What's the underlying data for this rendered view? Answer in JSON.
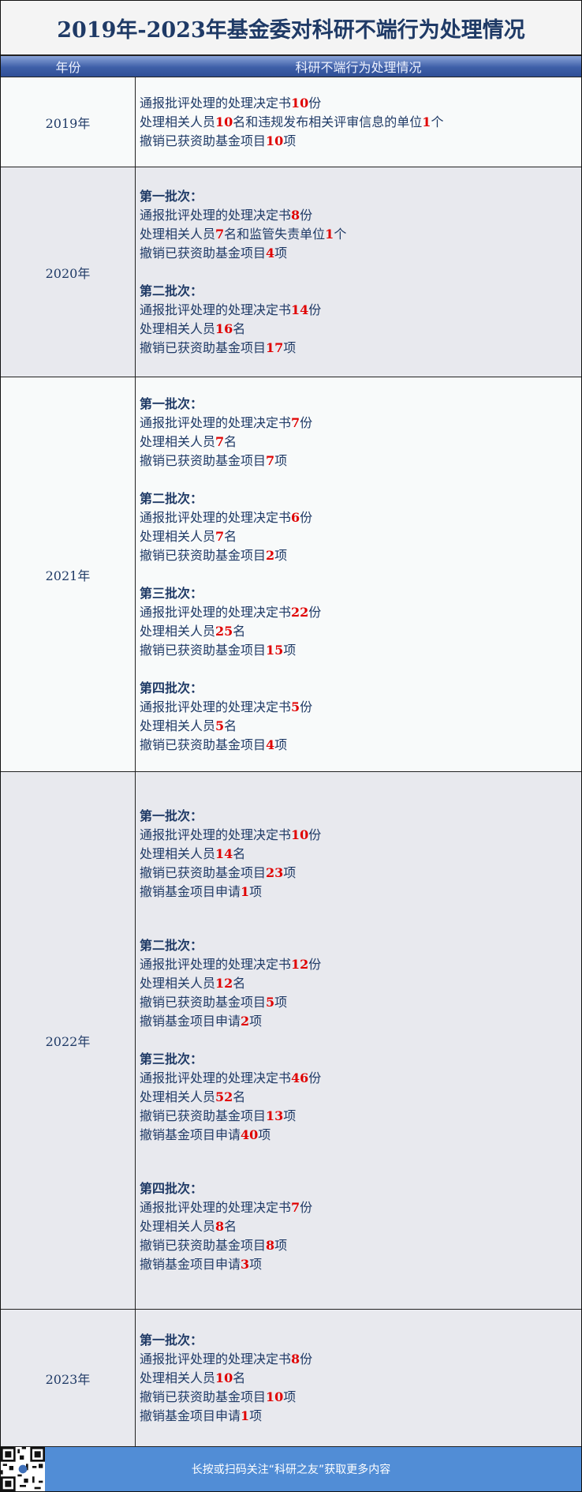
{
  "title": "2019年-2023年基金委对科研不端行为处理情况",
  "table_header": {
    "year": "年份",
    "details": "科研不端行为处理情况"
  },
  "colors": {
    "accent": "#518dd6",
    "number": "#e00000",
    "text": "#1f3a66"
  },
  "rows": [
    {
      "year": "2019年",
      "bg": "light",
      "height": 114,
      "groups": [
        {
          "batch": "",
          "gap": 0,
          "lines": [
            [
              {
                "t": "通报批评处理的处理决定书"
              },
              {
                "t": "10",
                "red": true
              },
              {
                "t": "份"
              }
            ],
            [
              {
                "t": "处理相关人员"
              },
              {
                "t": "10",
                "red": true
              },
              {
                "t": "名和违规发布相关评审信息的单位"
              },
              {
                "t": "1",
                "red": true
              },
              {
                "t": "个"
              }
            ],
            [
              {
                "t": "撤销已获资助基金项目"
              },
              {
                "t": "10",
                "red": true
              },
              {
                "t": "项"
              }
            ]
          ]
        }
      ]
    },
    {
      "year": "2020年",
      "bg": "grey",
      "height": 266,
      "groups": [
        {
          "batch": "第一批次：",
          "gap": 0,
          "lines": [
            [
              {
                "t": "通报批评处理的处理决定书"
              },
              {
                "t": "8",
                "red": true
              },
              {
                "t": "份"
              }
            ],
            [
              {
                "t": "处理相关人员"
              },
              {
                "t": "7",
                "red": true
              },
              {
                "t": "名和监管失责单位"
              },
              {
                "t": "1",
                "red": true
              },
              {
                "t": "个"
              }
            ],
            [
              {
                "t": "撤销已获资助基金项目"
              },
              {
                "t": "4",
                "red": true
              },
              {
                "t": "项"
              }
            ]
          ]
        },
        {
          "batch": "第二批次：",
          "gap": 1,
          "lines": [
            [
              {
                "t": "通报批评处理的处理决定书"
              },
              {
                "t": "14",
                "red": true
              },
              {
                "t": "份"
              }
            ],
            [
              {
                "t": "处理相关人员"
              },
              {
                "t": "16",
                "red": true
              },
              {
                "t": "名"
              }
            ],
            [
              {
                "t": "撤销已获资助基金项目"
              },
              {
                "t": "17",
                "red": true
              },
              {
                "t": "项"
              }
            ]
          ]
        }
      ]
    },
    {
      "year": "2021年",
      "bg": "light",
      "height": 500,
      "groups": [
        {
          "batch": "第一批次：",
          "gap": 0,
          "lines": [
            [
              {
                "t": "通报批评处理的处理决定书"
              },
              {
                "t": "7",
                "red": true
              },
              {
                "t": "份"
              }
            ],
            [
              {
                "t": "处理相关人员"
              },
              {
                "t": "7",
                "red": true
              },
              {
                "t": "名"
              }
            ],
            [
              {
                "t": "撤销已获资助基金项目"
              },
              {
                "t": "7",
                "red": true
              },
              {
                "t": "项"
              }
            ]
          ]
        },
        {
          "batch": "第二批次：",
          "gap": 1,
          "lines": [
            [
              {
                "t": "通报批评处理的处理决定书"
              },
              {
                "t": "6",
                "red": true
              },
              {
                "t": "份"
              }
            ],
            [
              {
                "t": "处理相关人员"
              },
              {
                "t": "7",
                "red": true
              },
              {
                "t": "名"
              }
            ],
            [
              {
                "t": "撤销已获资助基金项目"
              },
              {
                "t": "2",
                "red": true
              },
              {
                "t": "项"
              }
            ]
          ]
        },
        {
          "batch": "第三批次：",
          "gap": 1,
          "lines": [
            [
              {
                "t": "通报批评处理的处理决定书"
              },
              {
                "t": "22",
                "red": true
              },
              {
                "t": "份"
              }
            ],
            [
              {
                "t": "处理相关人员"
              },
              {
                "t": "25",
                "red": true
              },
              {
                "t": "名"
              }
            ],
            [
              {
                "t": "撤销已获资助基金项目"
              },
              {
                "t": "15",
                "red": true
              },
              {
                "t": "项"
              }
            ]
          ]
        },
        {
          "batch": "第四批次：",
          "gap": 1,
          "lines": [
            [
              {
                "t": "通报批评处理的处理决定书"
              },
              {
                "t": "5",
                "red": true
              },
              {
                "t": "份"
              }
            ],
            [
              {
                "t": "处理相关人员"
              },
              {
                "t": "5",
                "red": true
              },
              {
                "t": "名"
              }
            ],
            [
              {
                "t": "撤销已获资助基金项目"
              },
              {
                "t": "4",
                "red": true
              },
              {
                "t": "项"
              }
            ]
          ]
        }
      ]
    },
    {
      "year": "2022年",
      "bg": "grey",
      "height": 681,
      "groups": [
        {
          "batch": "第一批次：",
          "gap": 0,
          "lines": [
            [
              {
                "t": "通报批评处理的处理决定书"
              },
              {
                "t": "10",
                "red": true
              },
              {
                "t": "份"
              }
            ],
            [
              {
                "t": "处理相关人员"
              },
              {
                "t": "14",
                "red": true
              },
              {
                "t": "名"
              }
            ],
            [
              {
                "t": "撤销已获资助基金项目"
              },
              {
                "t": "23",
                "red": true
              },
              {
                "t": "项"
              }
            ],
            [
              {
                "t": "撤销基金项目申请"
              },
              {
                "t": "1",
                "red": true
              },
              {
                "t": "项"
              }
            ]
          ]
        },
        {
          "batch": "第二批次：",
          "gap": 2,
          "lines": [
            [
              {
                "t": "通报批评处理的处理决定书"
              },
              {
                "t": "12",
                "red": true
              },
              {
                "t": "份"
              }
            ],
            [
              {
                "t": "处理相关人员"
              },
              {
                "t": "12",
                "red": true
              },
              {
                "t": "名"
              }
            ],
            [
              {
                "t": "撤销已获资助基金项目"
              },
              {
                "t": "5",
                "red": true
              },
              {
                "t": "项"
              }
            ],
            [
              {
                "t": "撤销基金项目申请"
              },
              {
                "t": "2",
                "red": true
              },
              {
                "t": "项"
              }
            ]
          ]
        },
        {
          "batch": "第三批次：",
          "gap": 1,
          "lines": [
            [
              {
                "t": "通报批评处理的处理决定书"
              },
              {
                "t": "46",
                "red": true
              },
              {
                "t": "份"
              }
            ],
            [
              {
                "t": "处理相关人员"
              },
              {
                "t": "52",
                "red": true
              },
              {
                "t": "名"
              }
            ],
            [
              {
                "t": "撤销已获资助基金项目"
              },
              {
                "t": "13",
                "red": true
              },
              {
                "t": "项"
              }
            ],
            [
              {
                "t": "撤销基金项目申请"
              },
              {
                "t": "40",
                "red": true
              },
              {
                "t": "项"
              }
            ]
          ]
        },
        {
          "batch": "第四批次：",
          "gap": 2,
          "lines": [
            [
              {
                "t": "通报批评处理的处理决定书"
              },
              {
                "t": "7",
                "red": true
              },
              {
                "t": "份"
              }
            ],
            [
              {
                "t": "处理相关人员"
              },
              {
                "t": "8",
                "red": true
              },
              {
                "t": "名"
              }
            ],
            [
              {
                "t": "撤销已获资助基金项目"
              },
              {
                "t": "8",
                "red": true
              },
              {
                "t": "项"
              }
            ],
            [
              {
                "t": "撤销基金项目申请"
              },
              {
                "t": "3",
                "red": true
              },
              {
                "t": "项"
              }
            ]
          ]
        }
      ]
    },
    {
      "year": "2023年",
      "bg": "grey",
      "height": 174,
      "groups": [
        {
          "batch": "第一批次：",
          "gap": 0,
          "lines": [
            [
              {
                "t": "通报批评处理的处理决定书"
              },
              {
                "t": "8",
                "red": true
              },
              {
                "t": "份"
              }
            ],
            [
              {
                "t": "处理相关人员"
              },
              {
                "t": "10",
                "red": true
              },
              {
                "t": "名"
              }
            ],
            [
              {
                "t": "撤销已获资助基金项目"
              },
              {
                "t": "10",
                "red": true
              },
              {
                "t": "项"
              }
            ],
            [
              {
                "t": "撤销基金项目申请"
              },
              {
                "t": "1",
                "red": true
              },
              {
                "t": "项"
              }
            ]
          ]
        }
      ]
    }
  ],
  "footer": {
    "text": "长按或扫码关注“科研之友”获取更多内容",
    "qr_icon": "qr-code-icon"
  }
}
